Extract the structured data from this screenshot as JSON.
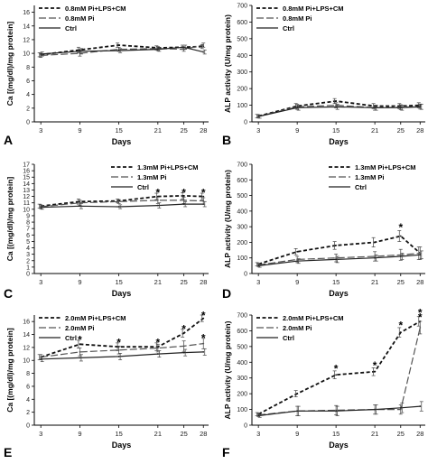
{
  "figure": {
    "panel_letters": [
      "A",
      "B",
      "C",
      "D",
      "E",
      "F"
    ]
  },
  "chart_data": [
    {
      "type": "line",
      "panel": "A",
      "x": [
        3,
        9,
        15,
        21,
        25,
        28
      ],
      "xlabel": "Days",
      "ylabel": "Ca [(mg/dl)/mg protein]",
      "ylim": [
        0,
        17
      ],
      "yticks": [
        0,
        2,
        4,
        6,
        8,
        10,
        12,
        14,
        16
      ],
      "legend_position": "top-left",
      "grid": false,
      "series": [
        {
          "name": "0.8mM Pi+LPS+CM",
          "style": "short-dash",
          "values": [
            9.8,
            10.5,
            11.2,
            10.8,
            10.9,
            11.0
          ],
          "err": [
            0.3,
            0.4,
            0.3,
            0.3,
            0.3,
            0.3
          ]
        },
        {
          "name": "0.8mM Pi",
          "style": "long-dash",
          "values": [
            9.7,
            10.0,
            10.6,
            10.7,
            10.6,
            11.2
          ],
          "err": [
            0.3,
            0.4,
            0.3,
            0.3,
            0.3,
            0.3
          ]
        },
        {
          "name": "Ctrl",
          "style": "solid",
          "values": [
            9.9,
            10.3,
            10.4,
            10.6,
            10.9,
            10.2
          ],
          "err": [
            0.3,
            0.4,
            0.3,
            0.3,
            0.3,
            0.3
          ]
        }
      ],
      "stars": []
    },
    {
      "type": "line",
      "panel": "B",
      "x": [
        3,
        9,
        15,
        21,
        25,
        28
      ],
      "xlabel": "Days",
      "ylabel": "ALP activity (U/mg protein)",
      "ylim": [
        0,
        700
      ],
      "yticks": [
        0,
        100,
        200,
        300,
        400,
        500,
        600,
        700
      ],
      "legend_position": "top-left",
      "grid": false,
      "series": [
        {
          "name": "0.8mM Pi+LPS+CM",
          "style": "short-dash",
          "values": [
            35,
            95,
            125,
            95,
            95,
            100
          ],
          "err": [
            10,
            15,
            15,
            15,
            15,
            15
          ]
        },
        {
          "name": "0.8mM Pi",
          "style": "long-dash",
          "values": [
            33,
            90,
            100,
            85,
            88,
            92
          ],
          "err": [
            10,
            15,
            15,
            15,
            15,
            15
          ]
        },
        {
          "name": "Ctrl",
          "style": "solid",
          "values": [
            32,
            85,
            90,
            85,
            85,
            90
          ],
          "err": [
            10,
            15,
            15,
            15,
            15,
            15
          ]
        }
      ],
      "stars": []
    },
    {
      "type": "line",
      "panel": "C",
      "x": [
        3,
        9,
        15,
        21,
        25,
        28
      ],
      "xlabel": "Days",
      "ylabel": "Ca [(mg/dl)/mg protein]",
      "ylim": [
        0,
        17
      ],
      "yticks": [
        0,
        1,
        2,
        3,
        4,
        5,
        6,
        7,
        8,
        9,
        10,
        11,
        12,
        13,
        14,
        15,
        16,
        17
      ],
      "legend_position": "top-right",
      "grid": false,
      "series": [
        {
          "name": "1.3mM Pi+LPS+CM",
          "style": "short-dash",
          "values": [
            10.5,
            11.2,
            11.3,
            12.0,
            12.1,
            12.0
          ],
          "err": [
            0.3,
            0.4,
            0.3,
            0.5,
            0.5,
            0.5
          ]
        },
        {
          "name": "1.3mM Pi",
          "style": "long-dash",
          "values": [
            10.4,
            11.0,
            11.2,
            11.4,
            11.4,
            11.3
          ],
          "err": [
            0.3,
            0.4,
            0.3,
            0.5,
            0.5,
            0.5
          ]
        },
        {
          "name": "Ctrl",
          "style": "solid",
          "values": [
            10.3,
            10.5,
            10.4,
            10.6,
            10.8,
            10.8
          ],
          "err": [
            0.3,
            0.4,
            0.3,
            0.4,
            0.4,
            0.4
          ]
        }
      ],
      "stars": [
        {
          "x": 21,
          "y": 12.7
        },
        {
          "x": 25,
          "y": 12.7
        },
        {
          "x": 28,
          "y": 12.7
        }
      ]
    },
    {
      "type": "line",
      "panel": "D",
      "x": [
        3,
        9,
        15,
        21,
        25,
        28
      ],
      "xlabel": "Days",
      "ylabel": "ALP activity (U/mg protein)",
      "ylim": [
        0,
        700
      ],
      "yticks": [
        0,
        100,
        200,
        300,
        400,
        500,
        600,
        700
      ],
      "legend_position": "top-right",
      "grid": false,
      "series": [
        {
          "name": "1.3mM Pi+LPS+CM",
          "style": "short-dash",
          "values": [
            60,
            140,
            180,
            200,
            240,
            130
          ],
          "err": [
            10,
            20,
            25,
            30,
            35,
            40
          ]
        },
        {
          "name": "1.3mM Pi",
          "style": "long-dash",
          "values": [
            55,
            90,
            100,
            110,
            120,
            130
          ],
          "err": [
            10,
            20,
            25,
            30,
            35,
            40
          ]
        },
        {
          "name": "Ctrl",
          "style": "solid",
          "values": [
            50,
            80,
            90,
            100,
            110,
            120
          ],
          "err": [
            10,
            15,
            20,
            20,
            20,
            25
          ]
        }
      ],
      "stars": [
        {
          "x": 25,
          "y": 300
        }
      ]
    },
    {
      "type": "line",
      "panel": "E",
      "x": [
        3,
        9,
        15,
        21,
        25,
        28
      ],
      "xlabel": "Days",
      "ylabel": "Ca [(mg/dl)/mg protein]",
      "ylim": [
        0,
        17
      ],
      "yticks": [
        0,
        2,
        4,
        6,
        8,
        10,
        12,
        14,
        16
      ],
      "legend_position": "top-left",
      "grid": false,
      "series": [
        {
          "name": "2.0mM Pi+LPS+CM",
          "style": "short-dash",
          "values": [
            10.5,
            12.5,
            12.1,
            12.1,
            14.2,
            16.5
          ],
          "err": [
            0.4,
            0.6,
            0.6,
            0.6,
            0.6,
            0.5
          ]
        },
        {
          "name": "2.0mM Pi",
          "style": "long-dash",
          "values": [
            10.5,
            11.3,
            11.6,
            11.9,
            12.2,
            12.6
          ],
          "err": [
            0.4,
            0.6,
            0.6,
            0.6,
            0.8,
            0.8
          ]
        },
        {
          "name": "Ctrl",
          "style": "solid",
          "values": [
            10.2,
            10.4,
            10.6,
            11.0,
            11.2,
            11.3
          ],
          "err": [
            0.4,
            0.5,
            0.5,
            0.5,
            0.5,
            0.5
          ]
        }
      ],
      "stars": [
        {
          "x": 9,
          "y": 13.3
        },
        {
          "x": 15,
          "y": 12.9
        },
        {
          "x": 21,
          "y": 12.9
        },
        {
          "x": 25,
          "y": 15.0
        },
        {
          "x": 28,
          "y": 17.1
        },
        {
          "x": 28,
          "y": 13.6
        }
      ]
    },
    {
      "type": "line",
      "panel": "F",
      "x": [
        3,
        9,
        15,
        21,
        25,
        28
      ],
      "xlabel": "Days",
      "ylabel": "ALP activity (U/mg protein)",
      "ylim": [
        0,
        700
      ],
      "yticks": [
        0,
        100,
        200,
        300,
        400,
        500,
        600,
        700
      ],
      "legend_position": "top-left",
      "grid": false,
      "series": [
        {
          "name": "2.0mM Pi+LPS+CM",
          "style": "short-dash",
          "values": [
            70,
            200,
            320,
            340,
            590,
            660
          ],
          "err": [
            10,
            20,
            25,
            25,
            30,
            30
          ]
        },
        {
          "name": "2.0mM Pi",
          "style": "long-dash",
          "values": [
            65,
            90,
            95,
            100,
            100,
            620
          ],
          "err": [
            10,
            30,
            30,
            30,
            30,
            40
          ]
        },
        {
          "name": "Ctrl",
          "style": "solid",
          "values": [
            60,
            90,
            90,
            100,
            110,
            120
          ],
          "err": [
            10,
            30,
            30,
            30,
            30,
            30
          ]
        }
      ],
      "stars": [
        {
          "x": 15,
          "y": 365
        },
        {
          "x": 21,
          "y": 385
        },
        {
          "x": 25,
          "y": 640
        },
        {
          "x": 28,
          "y": 720
        },
        {
          "x": 28,
          "y": 690
        }
      ]
    }
  ]
}
